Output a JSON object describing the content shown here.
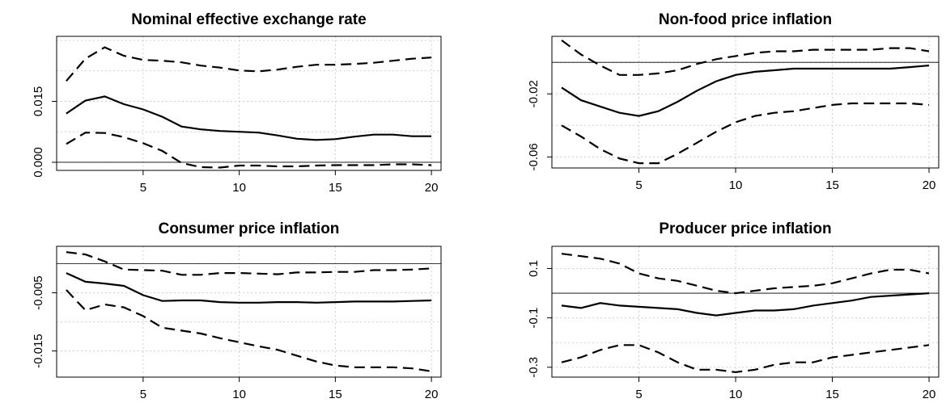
{
  "chart_data": [
    {
      "type": "line",
      "title": "Nominal effective exchange rate",
      "xlabel": "",
      "ylabel": "",
      "x": [
        1,
        2,
        3,
        4,
        5,
        6,
        7,
        8,
        9,
        10,
        11,
        12,
        13,
        14,
        15,
        16,
        17,
        18,
        19,
        20
      ],
      "xlim": [
        0.5,
        20.5
      ],
      "ylim": [
        -0.002,
        0.031
      ],
      "xticks": [
        5,
        10,
        15,
        20
      ],
      "yticks": [
        0.0,
        0.015
      ],
      "ytick_labels": [
        "0.000",
        "0.015"
      ],
      "zero_line": 0,
      "grid": true,
      "series": [
        {
          "style": "solid",
          "values": [
            0.012,
            0.0152,
            0.0162,
            0.0143,
            0.013,
            0.0112,
            0.0088,
            0.0081,
            0.0077,
            0.0075,
            0.0073,
            0.0066,
            0.0058,
            0.0055,
            0.0057,
            0.0063,
            0.0068,
            0.0068,
            0.0064,
            0.0064
          ]
        },
        {
          "style": "dashed",
          "values": [
            0.02,
            0.0255,
            0.0283,
            0.0262,
            0.0252,
            0.025,
            0.0246,
            0.0238,
            0.0233,
            0.0226,
            0.0224,
            0.0228,
            0.0235,
            0.024,
            0.024,
            0.0242,
            0.0245,
            0.025,
            0.0255,
            0.0258
          ]
        },
        {
          "style": "dashed",
          "values": [
            0.0045,
            0.0073,
            0.0072,
            0.0062,
            0.0047,
            0.0028,
            -0.0002,
            -0.0012,
            -0.0013,
            -0.0008,
            -0.0008,
            -0.001,
            -0.001,
            -0.0008,
            -0.0007,
            -0.0007,
            -0.0007,
            -0.0005,
            -0.0005,
            -0.0007
          ]
        }
      ]
    },
    {
      "type": "line",
      "title": "Non-food price inflation",
      "xlabel": "",
      "ylabel": "",
      "x": [
        1,
        2,
        3,
        4,
        5,
        6,
        7,
        8,
        9,
        10,
        11,
        12,
        13,
        14,
        15,
        16,
        17,
        18,
        19,
        20
      ],
      "xlim": [
        0.5,
        20.5
      ],
      "ylim": [
        -0.067,
        0.0165
      ],
      "xticks": [
        5,
        10,
        15,
        20
      ],
      "yticks": [
        -0.06,
        -0.02
      ],
      "ytick_labels": [
        "-0.06",
        "-0.02"
      ],
      "zero_line": 0,
      "grid": true,
      "series": [
        {
          "style": "solid",
          "values": [
            -0.016,
            -0.024,
            -0.028,
            -0.032,
            -0.034,
            -0.031,
            -0.025,
            -0.018,
            -0.012,
            -0.008,
            -0.006,
            -0.005,
            -0.004,
            -0.004,
            -0.004,
            -0.004,
            -0.004,
            -0.004,
            -0.003,
            -0.002
          ]
        },
        {
          "style": "dashed",
          "values": [
            0.014,
            0.005,
            -0.002,
            -0.008,
            -0.008,
            -0.007,
            -0.005,
            -0.001,
            0.002,
            0.004,
            0.006,
            0.007,
            0.007,
            0.008,
            0.008,
            0.008,
            0.008,
            0.009,
            0.009,
            0.007
          ]
        },
        {
          "style": "dashed",
          "values": [
            -0.04,
            -0.047,
            -0.055,
            -0.061,
            -0.064,
            -0.064,
            -0.058,
            -0.051,
            -0.044,
            -0.038,
            -0.034,
            -0.032,
            -0.031,
            -0.029,
            -0.027,
            -0.026,
            -0.026,
            -0.026,
            -0.026,
            -0.027
          ]
        }
      ]
    },
    {
      "type": "line",
      "title": "Consumer price inflation",
      "xlabel": "",
      "ylabel": "",
      "x": [
        1,
        2,
        3,
        4,
        5,
        6,
        7,
        8,
        9,
        10,
        11,
        12,
        13,
        14,
        15,
        16,
        17,
        18,
        19,
        20
      ],
      "xlim": [
        0.5,
        20.5
      ],
      "ylim": [
        -0.0195,
        0.003
      ],
      "xticks": [
        5,
        10,
        15,
        20
      ],
      "yticks": [
        -0.015,
        -0.005
      ],
      "ytick_labels": [
        "-0.015",
        "-0.005"
      ],
      "zero_line": 0,
      "grid": true,
      "series": [
        {
          "style": "solid",
          "values": [
            -0.0016,
            -0.0031,
            -0.0034,
            -0.0038,
            -0.0054,
            -0.0064,
            -0.0063,
            -0.0063,
            -0.0066,
            -0.0067,
            -0.0067,
            -0.0066,
            -0.0066,
            -0.0067,
            -0.0066,
            -0.0065,
            -0.0065,
            -0.0065,
            -0.0064,
            -0.0063
          ]
        },
        {
          "style": "dashed",
          "values": [
            0.002,
            0.0016,
            0.0004,
            -0.001,
            -0.0011,
            -0.0012,
            -0.0019,
            -0.0019,
            -0.0016,
            -0.0016,
            -0.0017,
            -0.0018,
            -0.0015,
            -0.0015,
            -0.0014,
            -0.0014,
            -0.0011,
            -0.0011,
            -0.001,
            -0.0008
          ]
        },
        {
          "style": "dashed",
          "values": [
            -0.0045,
            -0.008,
            -0.007,
            -0.0075,
            -0.009,
            -0.011,
            -0.0115,
            -0.012,
            -0.0128,
            -0.0135,
            -0.0142,
            -0.0148,
            -0.0158,
            -0.0168,
            -0.0175,
            -0.0178,
            -0.0178,
            -0.0178,
            -0.018,
            -0.0185
          ]
        }
      ]
    },
    {
      "type": "line",
      "title": "Producer price inflation",
      "xlabel": "",
      "ylabel": "",
      "x": [
        1,
        2,
        3,
        4,
        5,
        6,
        7,
        8,
        9,
        10,
        11,
        12,
        13,
        14,
        15,
        16,
        17,
        18,
        19,
        20
      ],
      "xlim": [
        0.5,
        20.5
      ],
      "ylim": [
        -0.34,
        0.19
      ],
      "xticks": [
        5,
        10,
        15,
        20
      ],
      "yticks": [
        -0.3,
        -0.1,
        0.1
      ],
      "ytick_labels": [
        "-0.3",
        "-0.1",
        "0.1"
      ],
      "zero_line": 0,
      "grid": true,
      "series": [
        {
          "style": "solid",
          "values": [
            -0.05,
            -0.06,
            -0.04,
            -0.05,
            -0.055,
            -0.06,
            -0.065,
            -0.08,
            -0.09,
            -0.08,
            -0.07,
            -0.07,
            -0.065,
            -0.05,
            -0.04,
            -0.03,
            -0.015,
            -0.01,
            -0.005,
            0.0
          ]
        },
        {
          "style": "dashed",
          "values": [
            0.16,
            0.15,
            0.14,
            0.12,
            0.08,
            0.06,
            0.05,
            0.03,
            0.01,
            0.0,
            0.01,
            0.02,
            0.025,
            0.03,
            0.04,
            0.06,
            0.08,
            0.095,
            0.095,
            0.08
          ]
        },
        {
          "style": "dashed",
          "values": [
            -0.28,
            -0.26,
            -0.23,
            -0.21,
            -0.21,
            -0.24,
            -0.28,
            -0.31,
            -0.31,
            -0.32,
            -0.31,
            -0.29,
            -0.28,
            -0.28,
            -0.26,
            -0.25,
            -0.24,
            -0.23,
            -0.22,
            -0.21
          ]
        }
      ]
    }
  ]
}
